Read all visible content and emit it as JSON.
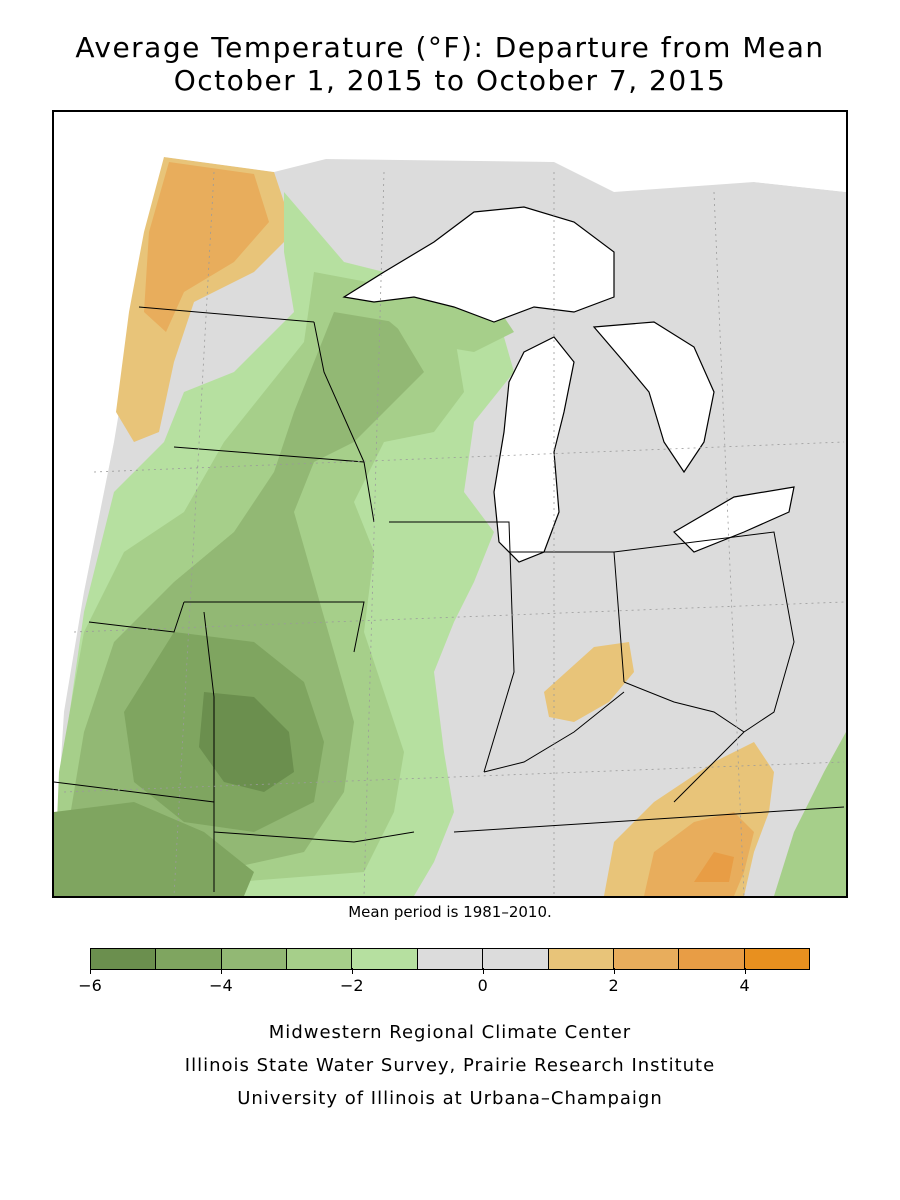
{
  "header": {
    "title_line1": "Average Temperature (°F): Departure from Mean",
    "title_line2": "October 1, 2015 to October 7, 2015"
  },
  "map": {
    "region_colors": {
      "d_neg6": "#6b8f4e",
      "d_neg5": "#7fa560",
      "d_neg4": "#92b874",
      "d_neg3": "#a6cf8a",
      "d_neg2": "#b6e0a0",
      "d_zero": "#dcdcdc",
      "d_pos1": "#e8c479",
      "d_pos2": "#e8ad5c",
      "d_pos3": "#e89d45",
      "water": "#ffffff",
      "boundary": "#000000",
      "grid": "#9a9a9a"
    }
  },
  "note": "Mean period is 1981–2010.",
  "legend": {
    "colors": [
      "#6b8f4e",
      "#7fa560",
      "#92b874",
      "#a6cf8a",
      "#b6e0a0",
      "#dcdcdc",
      "#dcdcdc",
      "#e8c479",
      "#e8ad5c",
      "#e89d45",
      "#e8901f"
    ],
    "ticks": [
      {
        "label": "−6",
        "value": -6
      },
      {
        "label": "−4",
        "value": -4
      },
      {
        "label": "−2",
        "value": -2
      },
      {
        "label": "0",
        "value": 0
      },
      {
        "label": "2",
        "value": 2
      },
      {
        "label": "4",
        "value": 4
      }
    ],
    "range": [
      -6,
      5
    ]
  },
  "credits": {
    "line1": "Midwestern Regional Climate Center",
    "line2": "Illinois State Water Survey, Prairie Research Institute",
    "line3": "University of Illinois at Urbana–Champaign"
  }
}
